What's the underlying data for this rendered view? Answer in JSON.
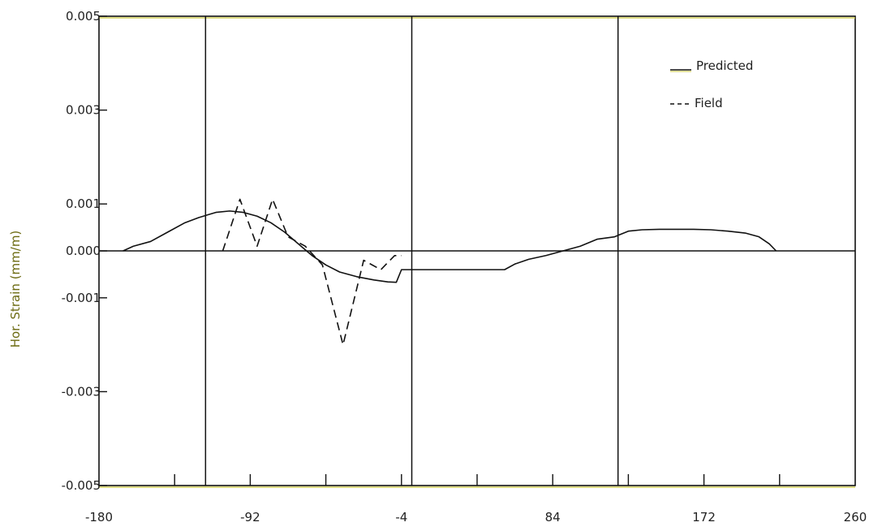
{
  "chart_data": {
    "type": "line",
    "title": "",
    "xlabel": "",
    "ylabel": "Hor. Strain (mm/m)",
    "xlim": [
      -180,
      260
    ],
    "ylim": [
      -0.005,
      0.005
    ],
    "x_ticks": [
      -180,
      -92,
      -4,
      84,
      172,
      260
    ],
    "y_ticks": [
      0.005,
      0.003,
      0.001,
      0.0,
      -0.001,
      -0.003,
      -0.005
    ],
    "y_tick_labels": [
      "0.005",
      "0.003",
      "0.001",
      "0.000",
      "-0.001",
      "-0.003",
      "-0.005"
    ],
    "vertical_gridlines_x": [
      -118,
      2,
      122
    ],
    "zero_line": true,
    "legend_position": "top-right",
    "series": [
      {
        "name": "Predicted",
        "style": "solid",
        "color": "#111111",
        "x": [
          -166,
          -160,
          -150,
          -140,
          -130,
          -122,
          -112,
          -104,
          -96,
          -88,
          -80,
          -72,
          -64,
          -56,
          -48,
          -40,
          -30,
          -20,
          -12,
          -7,
          -4,
          6,
          16,
          26,
          36,
          46,
          56,
          62,
          70,
          80,
          90,
          100,
          110,
          120,
          128,
          136,
          146,
          156,
          166,
          176,
          186,
          196,
          204,
          210,
          214
        ],
        "y": [
          0.0,
          0.0001,
          0.0002,
          0.0004,
          0.0006,
          0.00071,
          0.00082,
          0.00085,
          0.00082,
          0.00074,
          0.0006,
          0.0004,
          0.00015,
          -0.0001,
          -0.0003,
          -0.00045,
          -0.00055,
          -0.00062,
          -0.00066,
          -0.00067,
          -0.0004,
          -0.0004,
          -0.0004,
          -0.0004,
          -0.0004,
          -0.0004,
          -0.0004,
          -0.00028,
          -0.00018,
          -0.0001,
          0.0,
          0.0001,
          0.00025,
          0.0003,
          0.00042,
          0.00045,
          0.00046,
          0.00046,
          0.00046,
          0.00045,
          0.00042,
          0.00038,
          0.0003,
          0.00015,
          0.0
        ]
      },
      {
        "name": "Field",
        "style": "dashed",
        "color": "#111111",
        "x": [
          -108,
          -98,
          -88,
          -79,
          -70,
          -60,
          -50,
          -38,
          -26,
          -16,
          -8,
          -4
        ],
        "y": [
          0.0,
          0.0011,
          0.0001,
          0.0011,
          0.0003,
          0.0001,
          -0.0003,
          -0.002,
          -0.0002,
          -0.0004,
          -0.0001,
          -0.0001
        ]
      }
    ]
  },
  "legend": {
    "predicted_label": "Predicted",
    "field_label": "Field"
  }
}
